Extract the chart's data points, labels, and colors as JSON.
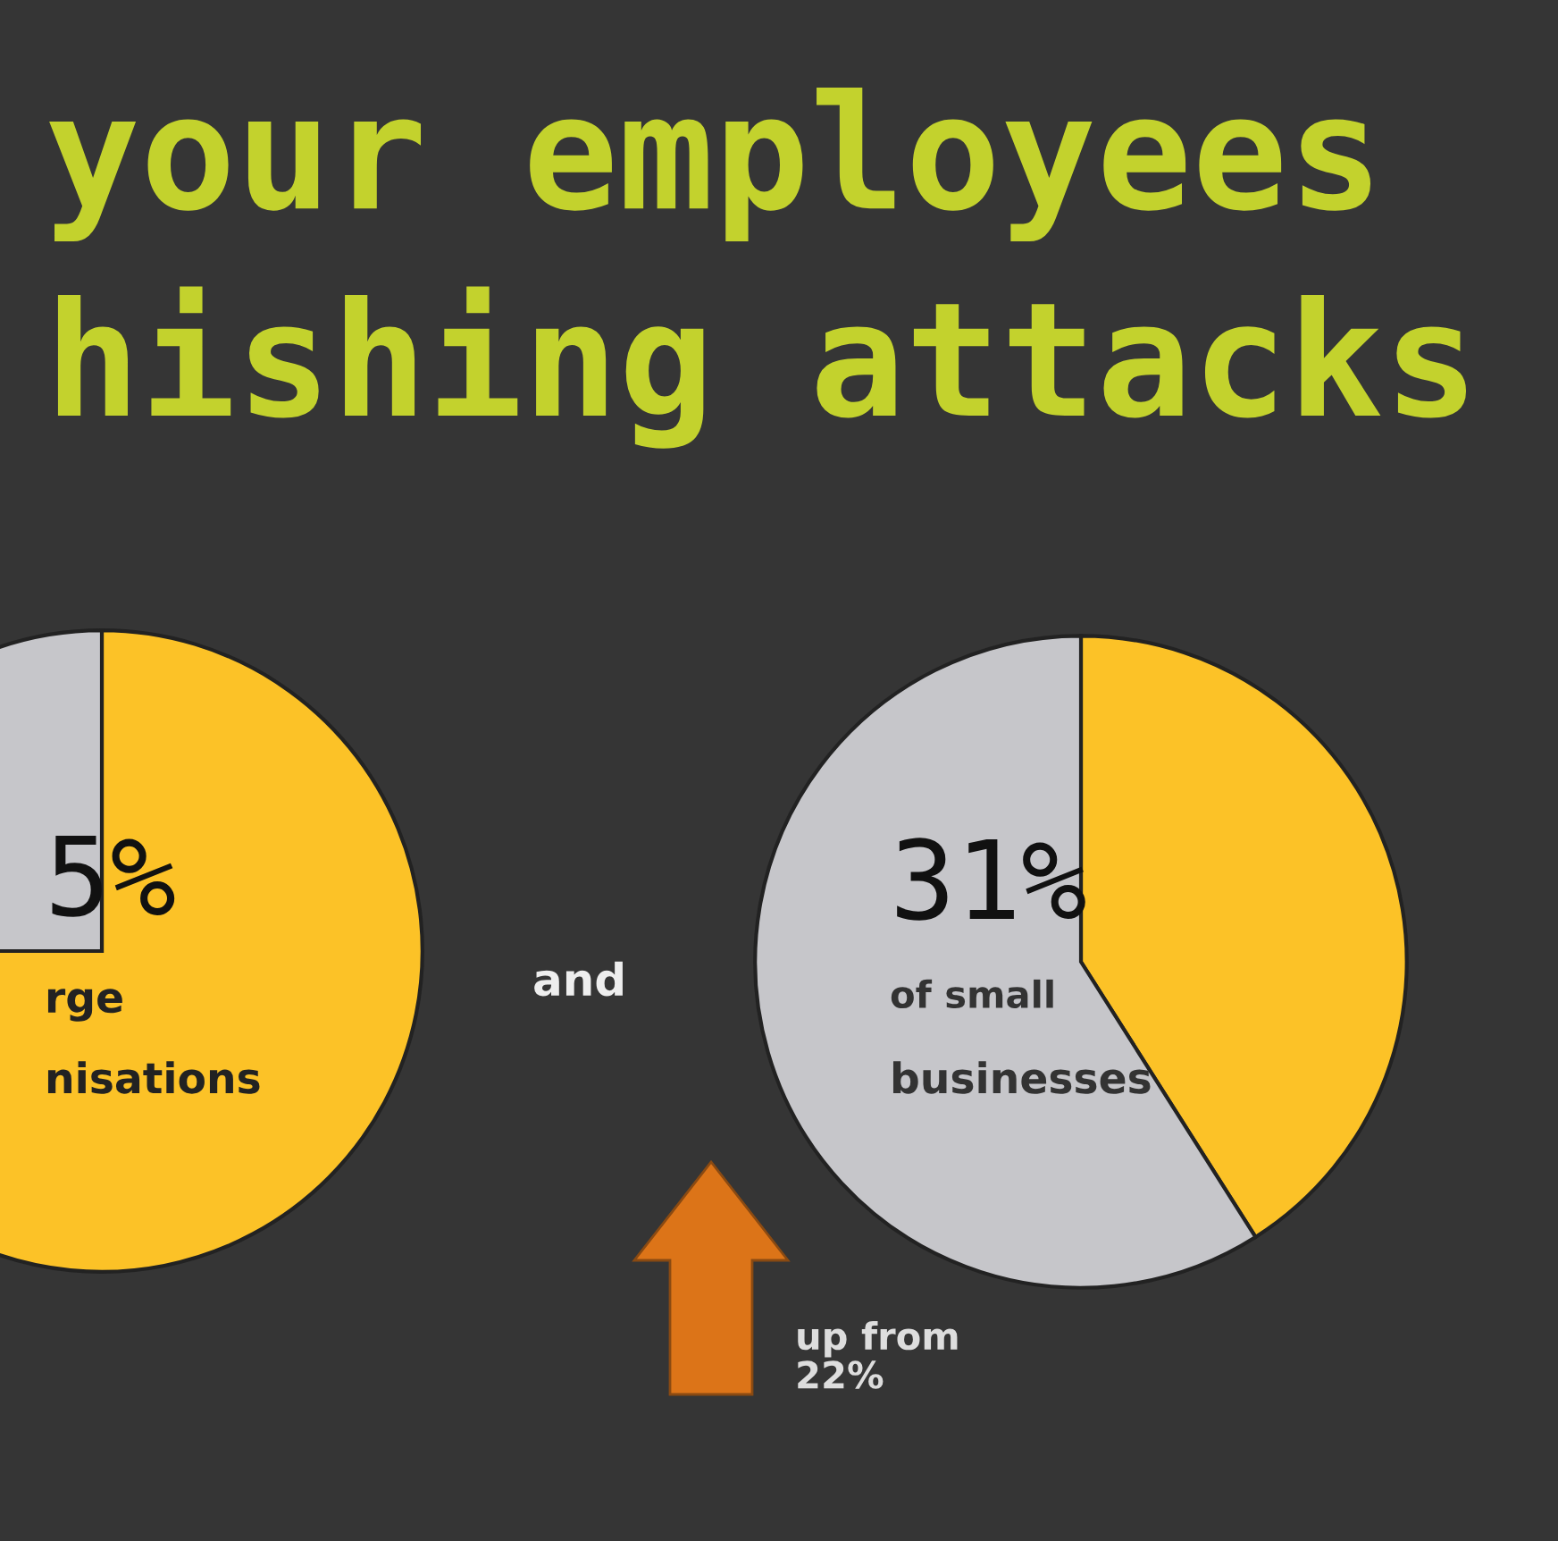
{
  "chart_data": [
    {
      "type": "pie",
      "title": "your employees\nhishing attacks",
      "categories": [
        null,
        null
      ],
      "values": [
        75,
        25
      ],
      "colors": [
        "#fcc227",
        "#c6c6ca"
      ],
      "annotations": [
        "5%",
        "rge",
        "nisations"
      ]
    },
    {
      "type": "pie",
      "categories": [
        null,
        null
      ],
      "values": [
        41,
        59
      ],
      "colors": [
        "#fcc227",
        "#c6c6ca"
      ],
      "annotations": [
        "31%",
        "of small",
        "businesses",
        "and",
        "up from\n22%"
      ]
    }
  ]
}
